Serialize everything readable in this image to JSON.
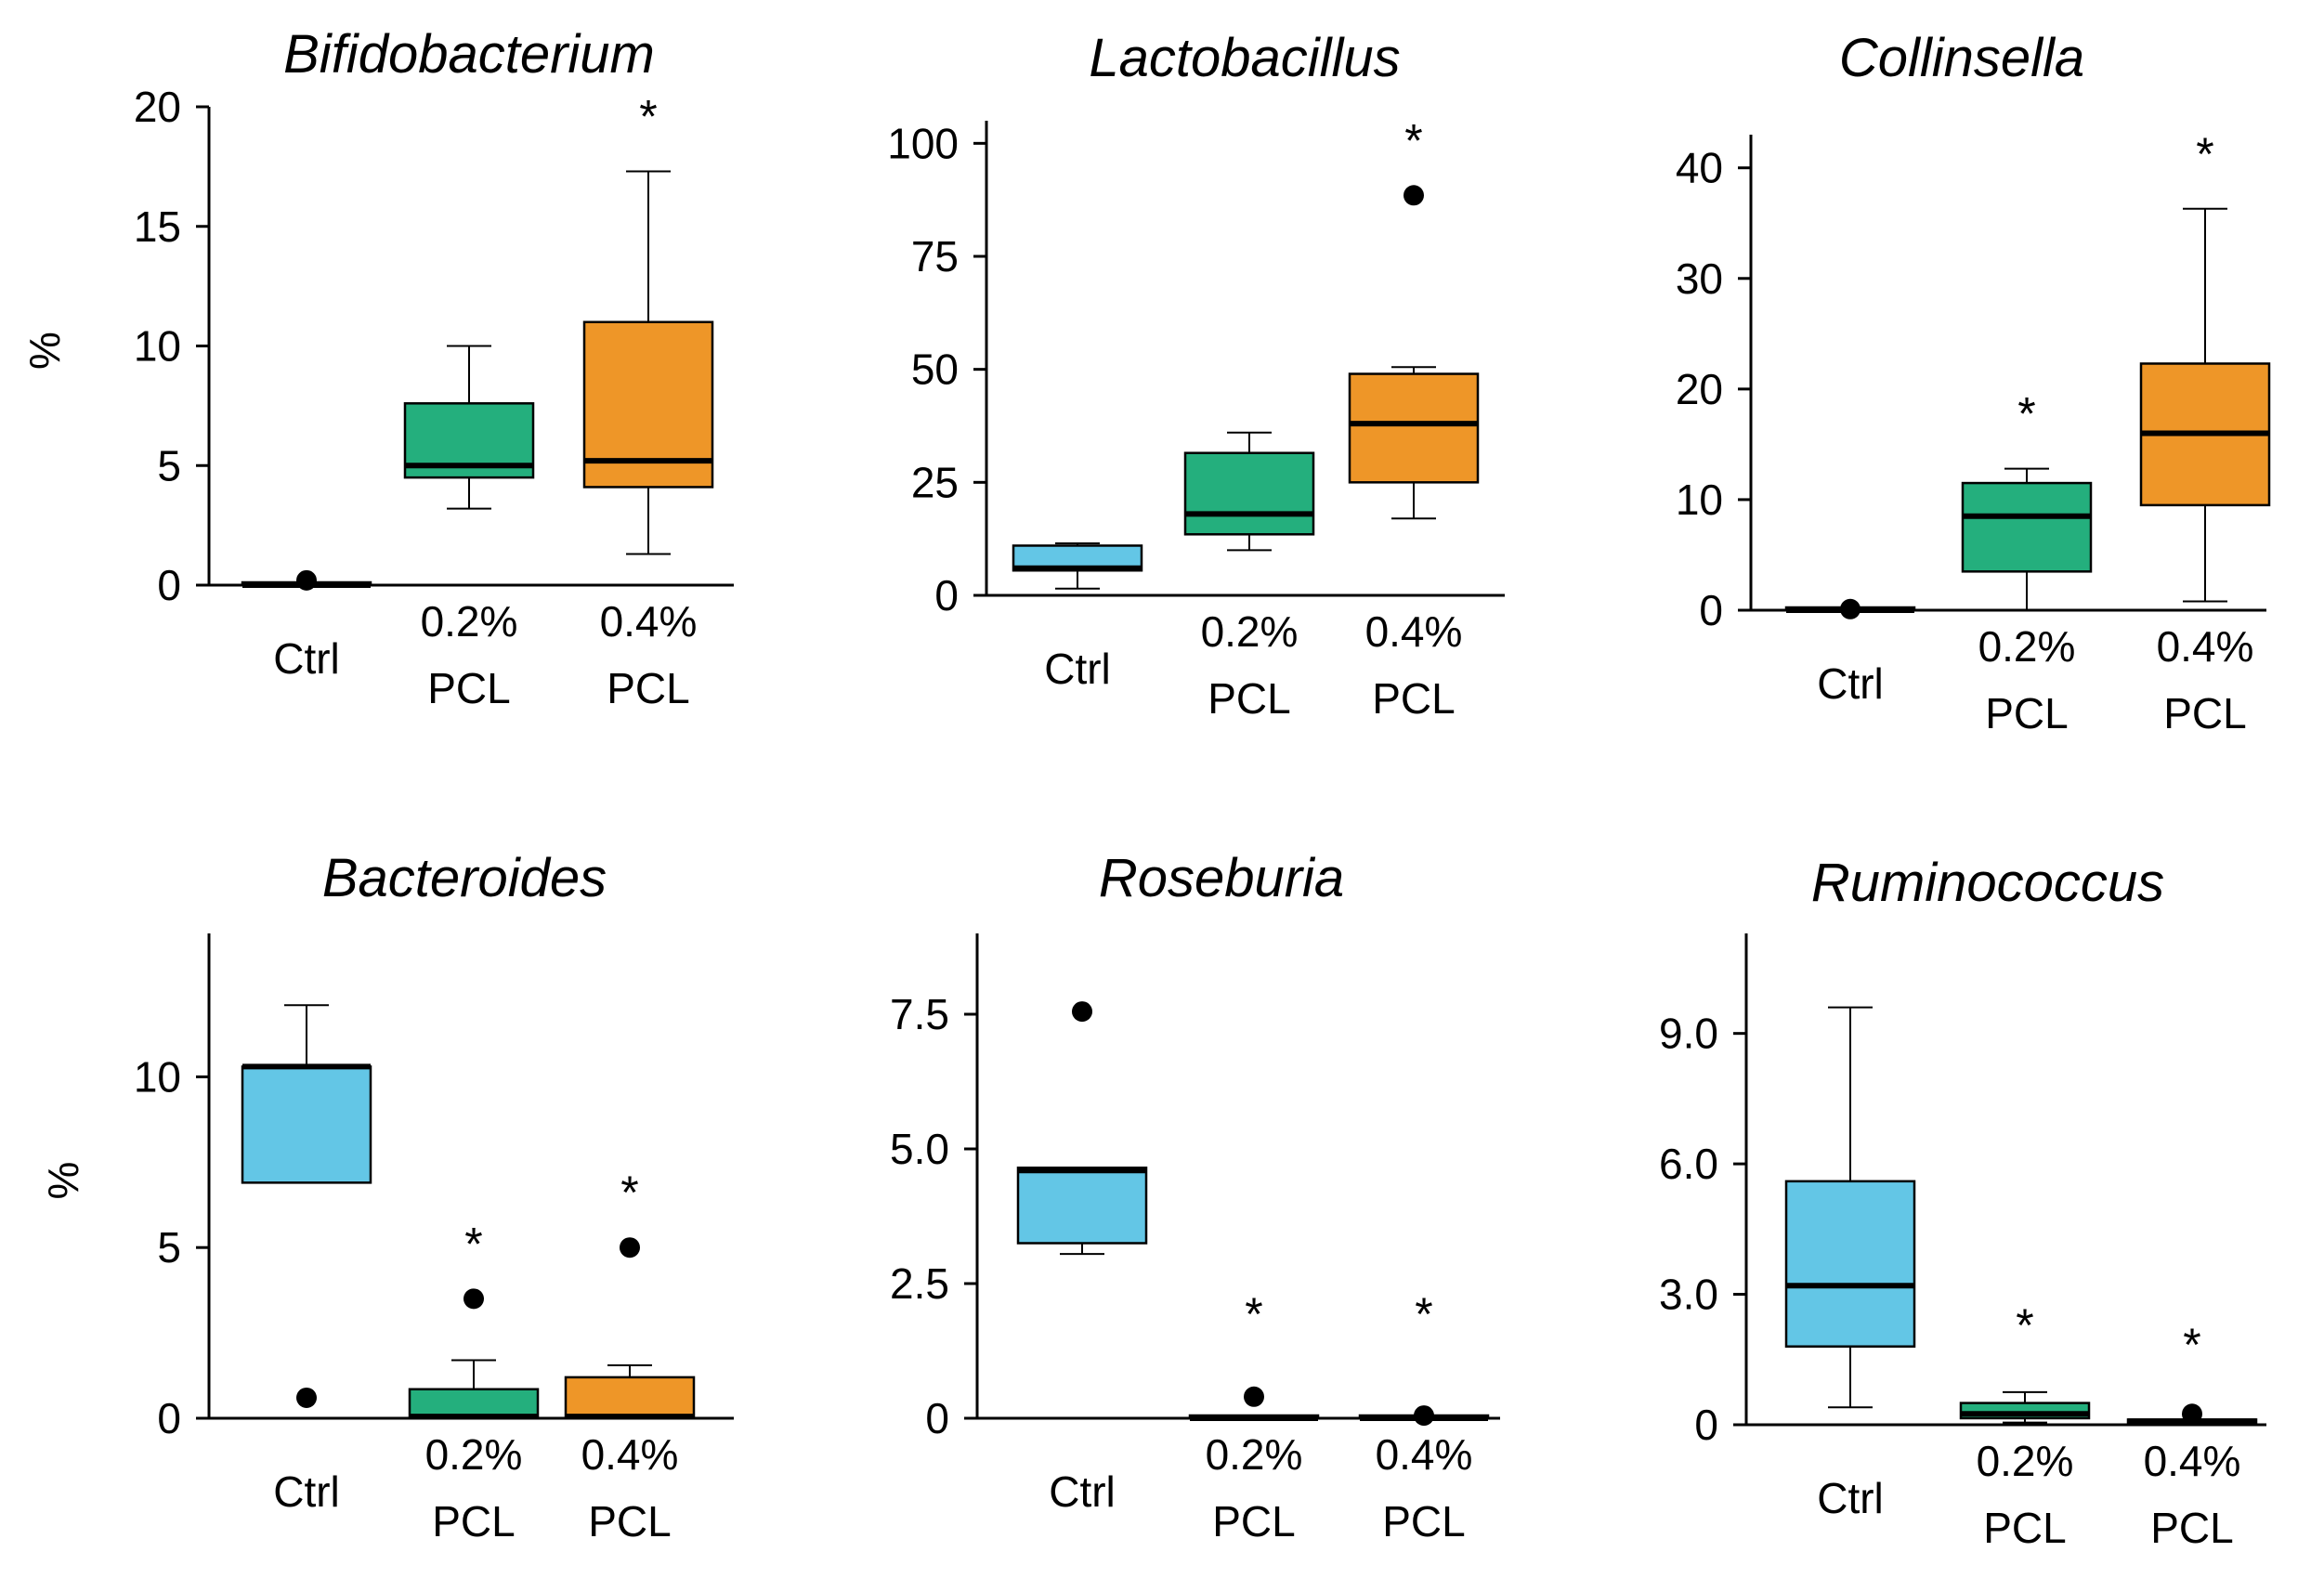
{
  "chart_data": [
    {
      "type": "box",
      "title": "Bifidobacterium",
      "ylabel": "%",
      "ylim": [
        0,
        20
      ],
      "yticks": [
        {
          "v": 0,
          "label": "0"
        },
        {
          "v": 5,
          "label": "5"
        },
        {
          "v": 10,
          "label": "10"
        },
        {
          "v": 15,
          "label": "15"
        },
        {
          "v": 20,
          "label": "20"
        }
      ],
      "groups": [
        {
          "name": "Ctrl",
          "lines": [
            "Ctrl"
          ],
          "color": "#63c6e6",
          "min": 0,
          "q1": 0,
          "median": 0,
          "q3": 0,
          "max": 0,
          "outliers": [
            0.2
          ],
          "sig": false
        },
        {
          "name": "0.2% PCL",
          "lines": [
            "0.2%",
            "PCL"
          ],
          "color": "#24af7d",
          "min": 3.2,
          "q1": 4.5,
          "median": 5.0,
          "q3": 7.6,
          "max": 10.0,
          "outliers": [],
          "sig": false
        },
        {
          "name": "0.4% PCL",
          "lines": [
            "0.4%",
            "PCL"
          ],
          "color": "#ee9628",
          "min": 1.3,
          "q1": 4.1,
          "median": 5.2,
          "q3": 11.0,
          "max": 17.3,
          "outliers": [],
          "sig": true
        }
      ]
    },
    {
      "type": "box",
      "title": "Lactobacillus",
      "ylabel": "",
      "ylim": [
        0,
        105
      ],
      "yticks": [
        {
          "v": 0,
          "label": "0"
        },
        {
          "v": 25,
          "label": "25"
        },
        {
          "v": 50,
          "label": "50"
        },
        {
          "v": 75,
          "label": "75"
        },
        {
          "v": 100,
          "label": "100"
        }
      ],
      "groups": [
        {
          "name": "Ctrl",
          "lines": [
            "Ctrl"
          ],
          "color": "#63c6e6",
          "min": 1.5,
          "q1": 5.5,
          "median": 6.0,
          "q3": 11.0,
          "max": 11.5,
          "outliers": [],
          "sig": false
        },
        {
          "name": "0.2% PCL",
          "lines": [
            "0.2%",
            "PCL"
          ],
          "color": "#24af7d",
          "min": 10.0,
          "q1": 13.5,
          "median": 18.0,
          "q3": 31.5,
          "max": 36.0,
          "outliers": [],
          "sig": false
        },
        {
          "name": "0.4% PCL",
          "lines": [
            "0.4%",
            "PCL"
          ],
          "color": "#ee9628",
          "min": 17.0,
          "q1": 25.0,
          "median": 38.0,
          "q3": 49.0,
          "max": 50.5,
          "outliers": [
            88.5
          ],
          "sig": true
        }
      ]
    },
    {
      "type": "box",
      "title": "Collinsella",
      "ylabel": "",
      "ylim": [
        0,
        43
      ],
      "yticks": [
        {
          "v": 0,
          "label": "0"
        },
        {
          "v": 10,
          "label": "10"
        },
        {
          "v": 20,
          "label": "20"
        },
        {
          "v": 30,
          "label": "30"
        },
        {
          "v": 40,
          "label": "40"
        }
      ],
      "groups": [
        {
          "name": "Ctrl",
          "lines": [
            "Ctrl"
          ],
          "color": "#63c6e6",
          "min": 0,
          "q1": 0,
          "median": 0,
          "q3": 0,
          "max": 0,
          "outliers": [
            0.1
          ],
          "sig": false
        },
        {
          "name": "0.2% PCL",
          "lines": [
            "0.2%",
            "PCL"
          ],
          "color": "#24af7d",
          "min": 0,
          "q1": 3.5,
          "median": 8.5,
          "q3": 11.5,
          "max": 12.8,
          "outliers": [],
          "sig": true
        },
        {
          "name": "0.4% PCL",
          "lines": [
            "0.4%",
            "PCL"
          ],
          "color": "#ee9628",
          "min": 0.8,
          "q1": 9.5,
          "median": 16.0,
          "q3": 22.3,
          "max": 36.3,
          "outliers": [],
          "sig": true
        }
      ]
    },
    {
      "type": "box",
      "title": "Bacteroides",
      "ylabel": "%",
      "ylim": [
        0,
        14.2
      ],
      "yticks": [
        {
          "v": 0,
          "label": "0"
        },
        {
          "v": 5,
          "label": "5"
        },
        {
          "v": 10,
          "label": "10"
        }
      ],
      "groups": [
        {
          "name": "Ctrl",
          "lines": [
            "Ctrl"
          ],
          "color": "#63c6e6",
          "min": 6.9,
          "q1": 6.9,
          "median": 10.3,
          "q3": 10.3,
          "max": 12.1,
          "outliers": [
            0.6
          ],
          "sig": false
        },
        {
          "name": "0.2% PCL",
          "lines": [
            "0.2%",
            "PCL"
          ],
          "color": "#24af7d",
          "min": 0,
          "q1": 0.05,
          "median": 0.05,
          "q3": 0.85,
          "max": 1.7,
          "outliers": [
            3.5
          ],
          "sig": true
        },
        {
          "name": "0.4% PCL",
          "lines": [
            "0.4%",
            "PCL"
          ],
          "color": "#ee9628",
          "min": 0,
          "q1": 0.05,
          "median": 0.05,
          "q3": 1.2,
          "max": 1.55,
          "outliers": [
            5.0
          ],
          "sig": true
        }
      ]
    },
    {
      "type": "box",
      "title": "Roseburia",
      "ylabel": "",
      "ylim": [
        0,
        9.0
      ],
      "yticks": [
        {
          "v": 0,
          "label": "0"
        },
        {
          "v": 2.5,
          "label": "2.5"
        },
        {
          "v": 5.0,
          "label": "5.0"
        },
        {
          "v": 7.5,
          "label": "7.5"
        }
      ],
      "groups": [
        {
          "name": "Ctrl",
          "lines": [
            "Ctrl"
          ],
          "color": "#63c6e6",
          "min": 3.05,
          "q1": 3.25,
          "median": 4.6,
          "q3": 4.65,
          "max": 4.65,
          "outliers": [
            7.55
          ],
          "sig": false
        },
        {
          "name": "0.2% PCL",
          "lines": [
            "0.2%",
            "PCL"
          ],
          "color": "#24af7d",
          "min": 0,
          "q1": 0,
          "median": 0,
          "q3": 0.05,
          "max": 0.05,
          "outliers": [
            0.4
          ],
          "sig": true
        },
        {
          "name": "0.4% PCL",
          "lines": [
            "0.4%",
            "PCL"
          ],
          "color": "#ee9628",
          "min": 0,
          "q1": 0,
          "median": 0,
          "q3": 0.02,
          "max": 0.02,
          "outliers": [
            0.05
          ],
          "sig": true
        }
      ]
    },
    {
      "type": "box",
      "title": "Ruminococcus",
      "ylabel": "",
      "ylim": [
        0,
        11.3
      ],
      "yticks": [
        {
          "v": 0,
          "label": "0"
        },
        {
          "v": 3.0,
          "label": "3.0"
        },
        {
          "v": 6.0,
          "label": "6.0"
        },
        {
          "v": 9.0,
          "label": "9.0"
        }
      ],
      "groups": [
        {
          "name": "Ctrl",
          "lines": [
            "Ctrl"
          ],
          "color": "#63c6e6",
          "min": 0.4,
          "q1": 1.8,
          "median": 3.2,
          "q3": 5.6,
          "max": 9.6,
          "outliers": [],
          "sig": false
        },
        {
          "name": "0.2% PCL",
          "lines": [
            "0.2%",
            "PCL"
          ],
          "color": "#24af7d",
          "min": 0.05,
          "q1": 0.15,
          "median": 0.25,
          "q3": 0.5,
          "max": 0.75,
          "outliers": [],
          "sig": true
        },
        {
          "name": "0.4% PCL",
          "lines": [
            "0.4%",
            "PCL"
          ],
          "color": "#ee9628",
          "min": 0,
          "q1": 0.05,
          "median": 0.08,
          "q3": 0.12,
          "max": 0.12,
          "outliers": [
            0.25
          ],
          "sig": true
        }
      ]
    }
  ],
  "significance_marker": "*"
}
